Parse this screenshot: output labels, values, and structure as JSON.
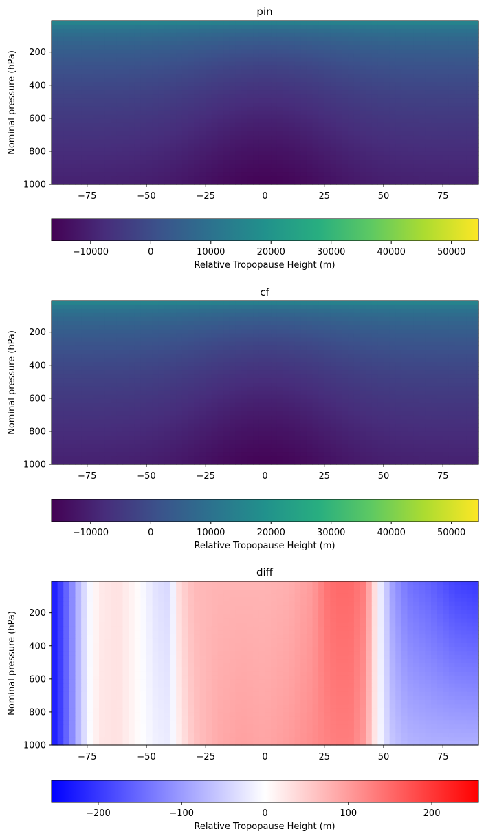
{
  "chart_data": [
    {
      "type": "heatmap",
      "title": "pin",
      "ylabel": "Nominal pressure (hPa)",
      "xlabel": "",
      "x_ticks": [
        -75,
        -50,
        -25,
        0,
        25,
        50,
        75
      ],
      "y_ticks": [
        200,
        400,
        600,
        800,
        1000
      ],
      "xlim": [
        -90,
        90
      ],
      "ylim": [
        1000,
        10
      ],
      "y_inverted": true,
      "colormap": "viridis",
      "field_description": "smooth field: about 22000 m at the top (10 hPa) falling to about -16000 m near the surface over the equator",
      "top_value": 22000,
      "bottom_equator_value": -16000,
      "bottom_pole_value": -10000,
      "colorbar": {
        "label": "Relative Tropopause Height (m)",
        "range": [
          -16500,
          54500
        ],
        "ticks": [
          -10000,
          0,
          10000,
          20000,
          30000,
          40000,
          50000
        ],
        "tick_labels": [
          "−10000",
          "0",
          "10000",
          "20000",
          "30000",
          "40000",
          "50000"
        ]
      }
    },
    {
      "type": "heatmap",
      "title": "cf",
      "ylabel": "Nominal pressure (hPa)",
      "xlabel": "",
      "x_ticks": [
        -75,
        -50,
        -25,
        0,
        25,
        50,
        75
      ],
      "y_ticks": [
        200,
        400,
        600,
        800,
        1000
      ],
      "xlim": [
        -90,
        90
      ],
      "ylim": [
        1000,
        10
      ],
      "y_inverted": true,
      "colormap": "viridis",
      "field_description": "nearly identical to pin",
      "top_value": 22000,
      "bottom_equator_value": -16000,
      "bottom_pole_value": -10000,
      "colorbar": {
        "label": "Relative Tropopause Height (m)",
        "range": [
          -16500,
          54500
        ],
        "ticks": [
          -10000,
          0,
          10000,
          20000,
          30000,
          40000,
          50000
        ],
        "tick_labels": [
          "−10000",
          "0",
          "10000",
          "20000",
          "30000",
          "40000",
          "50000"
        ]
      }
    },
    {
      "type": "heatmap",
      "title": "diff",
      "ylabel": "Nominal pressure (hPa)",
      "xlabel": "",
      "x_ticks": [
        -75,
        -50,
        -25,
        0,
        25,
        50,
        75
      ],
      "y_ticks": [
        200,
        400,
        600,
        800,
        1000
      ],
      "xlim": [
        -90,
        90
      ],
      "ylim": [
        1000,
        10
      ],
      "y_inverted": true,
      "colormap": "bwr",
      "latitude_profile": {
        "lat": [
          -90,
          -86,
          -82,
          -78,
          -74,
          -70,
          -62,
          -54,
          -46,
          -40,
          -36,
          -30,
          -20,
          -10,
          0,
          10,
          20,
          26,
          30,
          36,
          42,
          46,
          48,
          50,
          54,
          60,
          70,
          80,
          90
        ],
        "top": [
          -240,
          -190,
          -130,
          -60,
          -10,
          20,
          30,
          5,
          -30,
          -40,
          40,
          70,
          75,
          75,
          75,
          80,
          100,
          140,
          150,
          150,
          130,
          40,
          -10,
          -40,
          -100,
          -140,
          -160,
          -190,
          -200
        ],
        "bottom": [
          -240,
          -190,
          -130,
          -60,
          -5,
          25,
          30,
          5,
          -15,
          -20,
          20,
          60,
          85,
          95,
          90,
          100,
          115,
          125,
          130,
          130,
          100,
          30,
          0,
          -30,
          -60,
          -75,
          -80,
          -80,
          -80
        ]
      },
      "colorbar": {
        "label": "Relative Tropopause Height (m)",
        "range": [
          -256,
          256
        ],
        "ticks": [
          -200,
          -100,
          0,
          100,
          200
        ],
        "tick_labels": [
          "−200",
          "−100",
          "0",
          "100",
          "200"
        ]
      }
    }
  ]
}
